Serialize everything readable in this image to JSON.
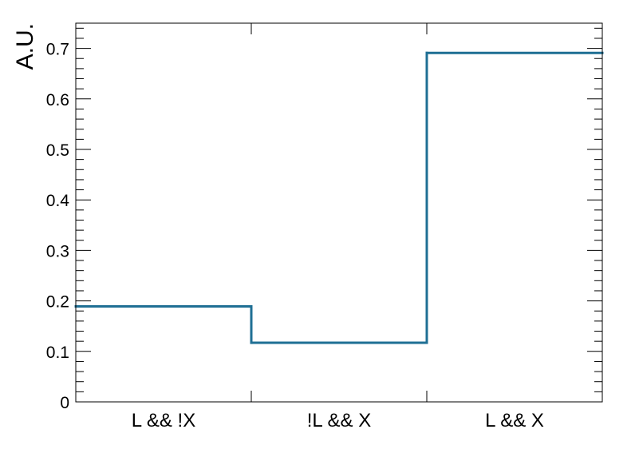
{
  "chart_data": {
    "type": "bar",
    "style": "step-histogram",
    "title": "",
    "xlabel": "",
    "ylabel": "A.U.",
    "categories": [
      "L && !X",
      "!L && X",
      "L && X"
    ],
    "values": [
      0.189,
      0.117,
      0.691
    ],
    "ylim": [
      0,
      0.75
    ],
    "y_ticks": [
      0,
      0.1,
      0.2,
      0.3,
      0.4,
      0.5,
      0.6,
      0.7
    ],
    "y_tick_labels": [
      "0",
      "0.1",
      "0.2",
      "0.3",
      "0.4",
      "0.5",
      "0.6",
      "0.7"
    ],
    "grid": false,
    "legend": "none",
    "line_color": "#1f6f94"
  }
}
